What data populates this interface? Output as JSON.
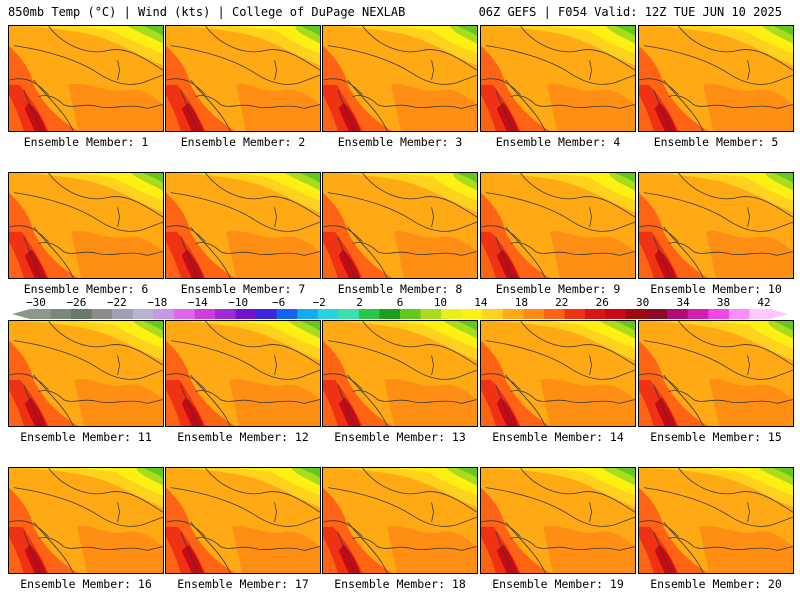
{
  "header": {
    "left": "850mb Temp (°C) | Wind (kts) | College of DuPage NEXLAB",
    "right": "06Z GEFS | F054 Valid: 12Z TUE JUN 10 2025"
  },
  "panels": [
    {
      "label": "Ensemble Member: 1"
    },
    {
      "label": "Ensemble Member: 2"
    },
    {
      "label": "Ensemble Member: 3"
    },
    {
      "label": "Ensemble Member: 4"
    },
    {
      "label": "Ensemble Member: 5"
    },
    {
      "label": "Ensemble Member: 6"
    },
    {
      "label": "Ensemble Member: 7"
    },
    {
      "label": "Ensemble Member: 8"
    },
    {
      "label": "Ensemble Member: 9"
    },
    {
      "label": "Ensemble Member: 10"
    },
    {
      "label": "Ensemble Member: 11"
    },
    {
      "label": "Ensemble Member: 12"
    },
    {
      "label": "Ensemble Member: 13"
    },
    {
      "label": "Ensemble Member: 14"
    },
    {
      "label": "Ensemble Member: 15"
    },
    {
      "label": "Ensemble Member: 16"
    },
    {
      "label": "Ensemble Member: 17"
    },
    {
      "label": "Ensemble Member: 18"
    },
    {
      "label": "Ensemble Member: 19"
    },
    {
      "label": "Ensemble Member: 20"
    }
  ],
  "colorbar": {
    "tick_labels": [
      "−30",
      "−26",
      "−22",
      "−18",
      "−14",
      "−10",
      "−6",
      "−2",
      "2",
      "6",
      "10",
      "14",
      "18",
      "22",
      "26",
      "30",
      "34",
      "38",
      "42"
    ],
    "colors": [
      "#8a9a8a",
      "#7a8a7a",
      "#6a7a6a",
      "#8c8c8c",
      "#a0a0b4",
      "#b4b4d2",
      "#c896e6",
      "#e164f0",
      "#d03ce0",
      "#a028d8",
      "#6e14d0",
      "#3c28dc",
      "#1464f0",
      "#14aaf0",
      "#28d2e6",
      "#3ce0aa",
      "#28c84a",
      "#1ea01e",
      "#64c81e",
      "#aadc1e",
      "#e6f01e",
      "#fff014",
      "#ffd21e",
      "#ffaa14",
      "#ff8c14",
      "#ff6414",
      "#f03214",
      "#dc1414",
      "#c80a14",
      "#a00a0a",
      "#8c0a28",
      "#b40a78",
      "#d21eb4",
      "#f046e6",
      "#ff8cff",
      "#ffc8ff"
    ]
  }
}
